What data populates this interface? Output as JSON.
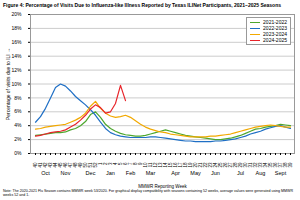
{
  "chart_data": {
    "type": "line",
    "title": "Figure 4: Percentage of Visits Due to Influenza-like Illness Reported by Texas ILINet Participants, 2021–2025 Seasons",
    "x_label": "MMWR Reporting Week",
    "y_label": "Percentage of visits due to ILI",
    "note": "Note: The 2020-2021 Flu Season contains MMWR week 53/2020. For graphical display compatibility with seasons containing 52 weeks, average values were generated using MMWR weeks 52 and 1.",
    "categories": [
      "40",
      "41",
      "42",
      "43",
      "44",
      "45",
      "46",
      "47",
      "48",
      "49",
      "50",
      "51",
      "52",
      "1",
      "2",
      "3",
      "4",
      "5",
      "6",
      "7",
      "8",
      "9",
      "10",
      "11",
      "12",
      "13",
      "14",
      "15",
      "16",
      "17",
      "18",
      "19",
      "20",
      "21",
      "22",
      "23",
      "24",
      "25",
      "26",
      "27",
      "28",
      "29",
      "30",
      "31",
      "32",
      "33",
      "34",
      "35",
      "36",
      "37",
      "38",
      "39"
    ],
    "month_labels": [
      {
        "label": "Oct",
        "category": "42"
      },
      {
        "label": "Nov",
        "category": "46"
      },
      {
        "label": "Dec",
        "category": "51"
      },
      {
        "label": "Jan",
        "category": "3"
      },
      {
        "label": "Feb",
        "category": "7"
      },
      {
        "label": "Mar",
        "category": "11"
      },
      {
        "label": "Apr",
        "category": "16"
      },
      {
        "label": "May",
        "category": "20"
      },
      {
        "label": "Jun",
        "category": "24"
      },
      {
        "label": "Jul",
        "category": "29"
      },
      {
        "label": "Aug",
        "category": "33"
      },
      {
        "label": "Sept",
        "category": "37"
      }
    ],
    "series": [
      {
        "name": "2021-2022",
        "color": "#4ea72e",
        "values": [
          2.6,
          2.7,
          2.8,
          2.9,
          3.0,
          3.0,
          3.1,
          3.4,
          3.6,
          4.0,
          4.6,
          5.6,
          6.0,
          5.2,
          4.2,
          3.6,
          3.2,
          2.9,
          2.7,
          2.6,
          2.5,
          2.5,
          2.6,
          2.8,
          3.0,
          3.2,
          3.4,
          3.2,
          3.0,
          2.8,
          2.6,
          2.5,
          2.4,
          2.3,
          2.2,
          2.1,
          2.0,
          2.0,
          2.1,
          2.2,
          2.4,
          2.6,
          2.9,
          3.2,
          3.5,
          3.6,
          3.8,
          3.9,
          4.0,
          4.2,
          4.1,
          4.0
        ]
      },
      {
        "name": "2022-2023",
        "color": "#1f6fc5",
        "values": [
          4.5,
          5.3,
          6.5,
          8.0,
          9.5,
          10.0,
          9.7,
          9.0,
          8.2,
          7.6,
          7.0,
          6.3,
          5.5,
          4.5,
          3.6,
          3.0,
          2.7,
          2.5,
          2.4,
          2.3,
          2.3,
          2.3,
          2.3,
          2.4,
          2.4,
          2.3,
          2.2,
          2.1,
          2.0,
          1.9,
          1.8,
          1.8,
          1.7,
          1.7,
          1.7,
          1.7,
          1.8,
          1.8,
          1.9,
          2.0,
          2.1,
          2.3,
          2.5,
          2.8,
          3.0,
          3.2,
          3.5,
          3.7,
          3.9,
          4.0,
          3.8,
          3.6
        ]
      },
      {
        "name": "2023-2024",
        "color": "#f2a900",
        "values": [
          3.5,
          3.6,
          3.8,
          3.9,
          4.0,
          4.1,
          4.2,
          4.5,
          4.8,
          5.2,
          5.8,
          6.8,
          7.5,
          6.5,
          5.8,
          5.4,
          5.2,
          5.3,
          5.5,
          5.2,
          4.7,
          4.2,
          3.8,
          3.5,
          3.3,
          3.1,
          3.0,
          2.8,
          2.7,
          2.6,
          2.5,
          2.4,
          2.4,
          2.4,
          2.4,
          2.5,
          2.5,
          2.6,
          2.7,
          2.8,
          3.0,
          3.2,
          3.4,
          3.6,
          3.8,
          3.9,
          4.0,
          4.1,
          4.0,
          3.9,
          3.8,
          3.8
        ]
      },
      {
        "name": "2024-2025",
        "color": "#e8242a",
        "values": [
          2.5,
          2.6,
          2.8,
          3.0,
          3.1,
          3.2,
          3.4,
          3.8,
          4.2,
          4.8,
          5.5,
          6.4,
          7.0,
          6.6,
          5.8,
          6.0,
          7.2,
          9.8,
          7.6,
          null,
          null,
          null,
          null,
          null,
          null,
          null,
          null,
          null,
          null,
          null,
          null,
          null,
          null,
          null,
          null,
          null,
          null,
          null,
          null,
          null,
          null,
          null,
          null,
          null,
          null,
          null,
          null,
          null,
          null,
          null,
          null,
          null
        ]
      }
    ],
    "ylim": [
      0,
      20
    ],
    "yticks": [
      {
        "value": 0,
        "label": "0%"
      },
      {
        "value": 2,
        "label": "2%"
      },
      {
        "value": 4,
        "label": "4%"
      },
      {
        "value": 6,
        "label": "6%"
      },
      {
        "value": 8,
        "label": "8%"
      },
      {
        "value": 10,
        "label": "10%"
      },
      {
        "value": 12,
        "label": "12%"
      },
      {
        "value": 14,
        "label": "14%"
      },
      {
        "value": 16,
        "label": "16%"
      },
      {
        "value": 18,
        "label": "18%"
      },
      {
        "value": 20,
        "label": "20%"
      }
    ],
    "grid": true,
    "legend": "upper right"
  }
}
